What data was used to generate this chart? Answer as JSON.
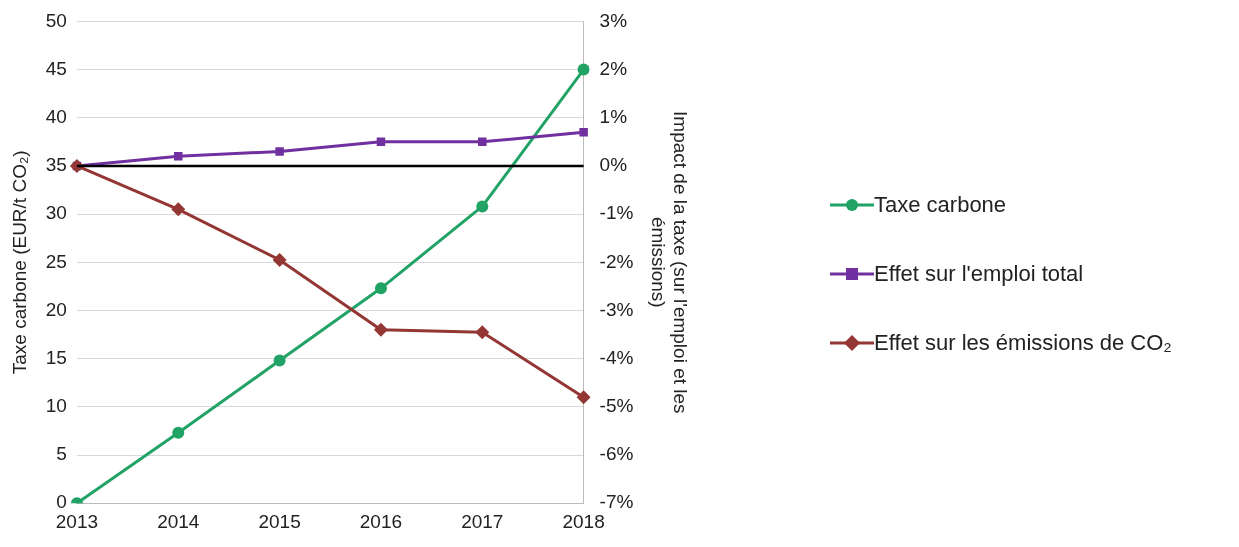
{
  "chart_data": {
    "type": "line",
    "ylabel": "Taxe carbone (EUR/t CO₂)",
    "y2label": "Impact de la taxe (sur l'emploi et les émissions)",
    "categories": [
      "2013",
      "2014",
      "2015",
      "2016",
      "2017",
      "2018"
    ],
    "series": [
      {
        "name": "Taxe carbone",
        "color": "#21a366",
        "marker": "circle",
        "values": [
          0,
          7.3,
          14.8,
          22.3,
          30.8,
          45
        ]
      },
      {
        "name": "Effet sur l'emploi total",
        "color": "#7030a0",
        "marker": "square",
        "axis": "y2",
        "values": [
          0,
          0.2,
          0.3,
          0.5,
          0.5,
          0.7
        ]
      },
      {
        "name": "Effet sur les émissions de CO₂",
        "color": "#943634",
        "marker": "diamond",
        "axis": "y2",
        "values": [
          0,
          -0.9,
          -1.95,
          -3.4,
          -3.45,
          -4.8
        ]
      }
    ],
    "ylim": [
      0,
      50
    ],
    "yticks": [
      0,
      5,
      10,
      15,
      20,
      25,
      30,
      35,
      40,
      45,
      50
    ],
    "y2lim": [
      -7,
      3
    ],
    "y2ticks": [
      {
        "value": -7,
        "label": "-7%"
      },
      {
        "value": -6,
        "label": "-6%"
      },
      {
        "value": -5,
        "label": "-5%"
      },
      {
        "value": -4,
        "label": "-4%"
      },
      {
        "value": -3,
        "label": "-3%"
      },
      {
        "value": -2,
        "label": "-2%"
      },
      {
        "value": -1,
        "label": "-1%"
      },
      {
        "value": 0,
        "label": "0%"
      },
      {
        "value": 1,
        "label": "1%"
      },
      {
        "value": 2,
        "label": "2%"
      },
      {
        "value": 3,
        "label": "3%"
      }
    ],
    "ref_lines": [
      {
        "axis": "y2",
        "value": 0,
        "color": "#000000"
      }
    ],
    "grid": "y",
    "legend": "right",
    "line_style": "solid"
  }
}
